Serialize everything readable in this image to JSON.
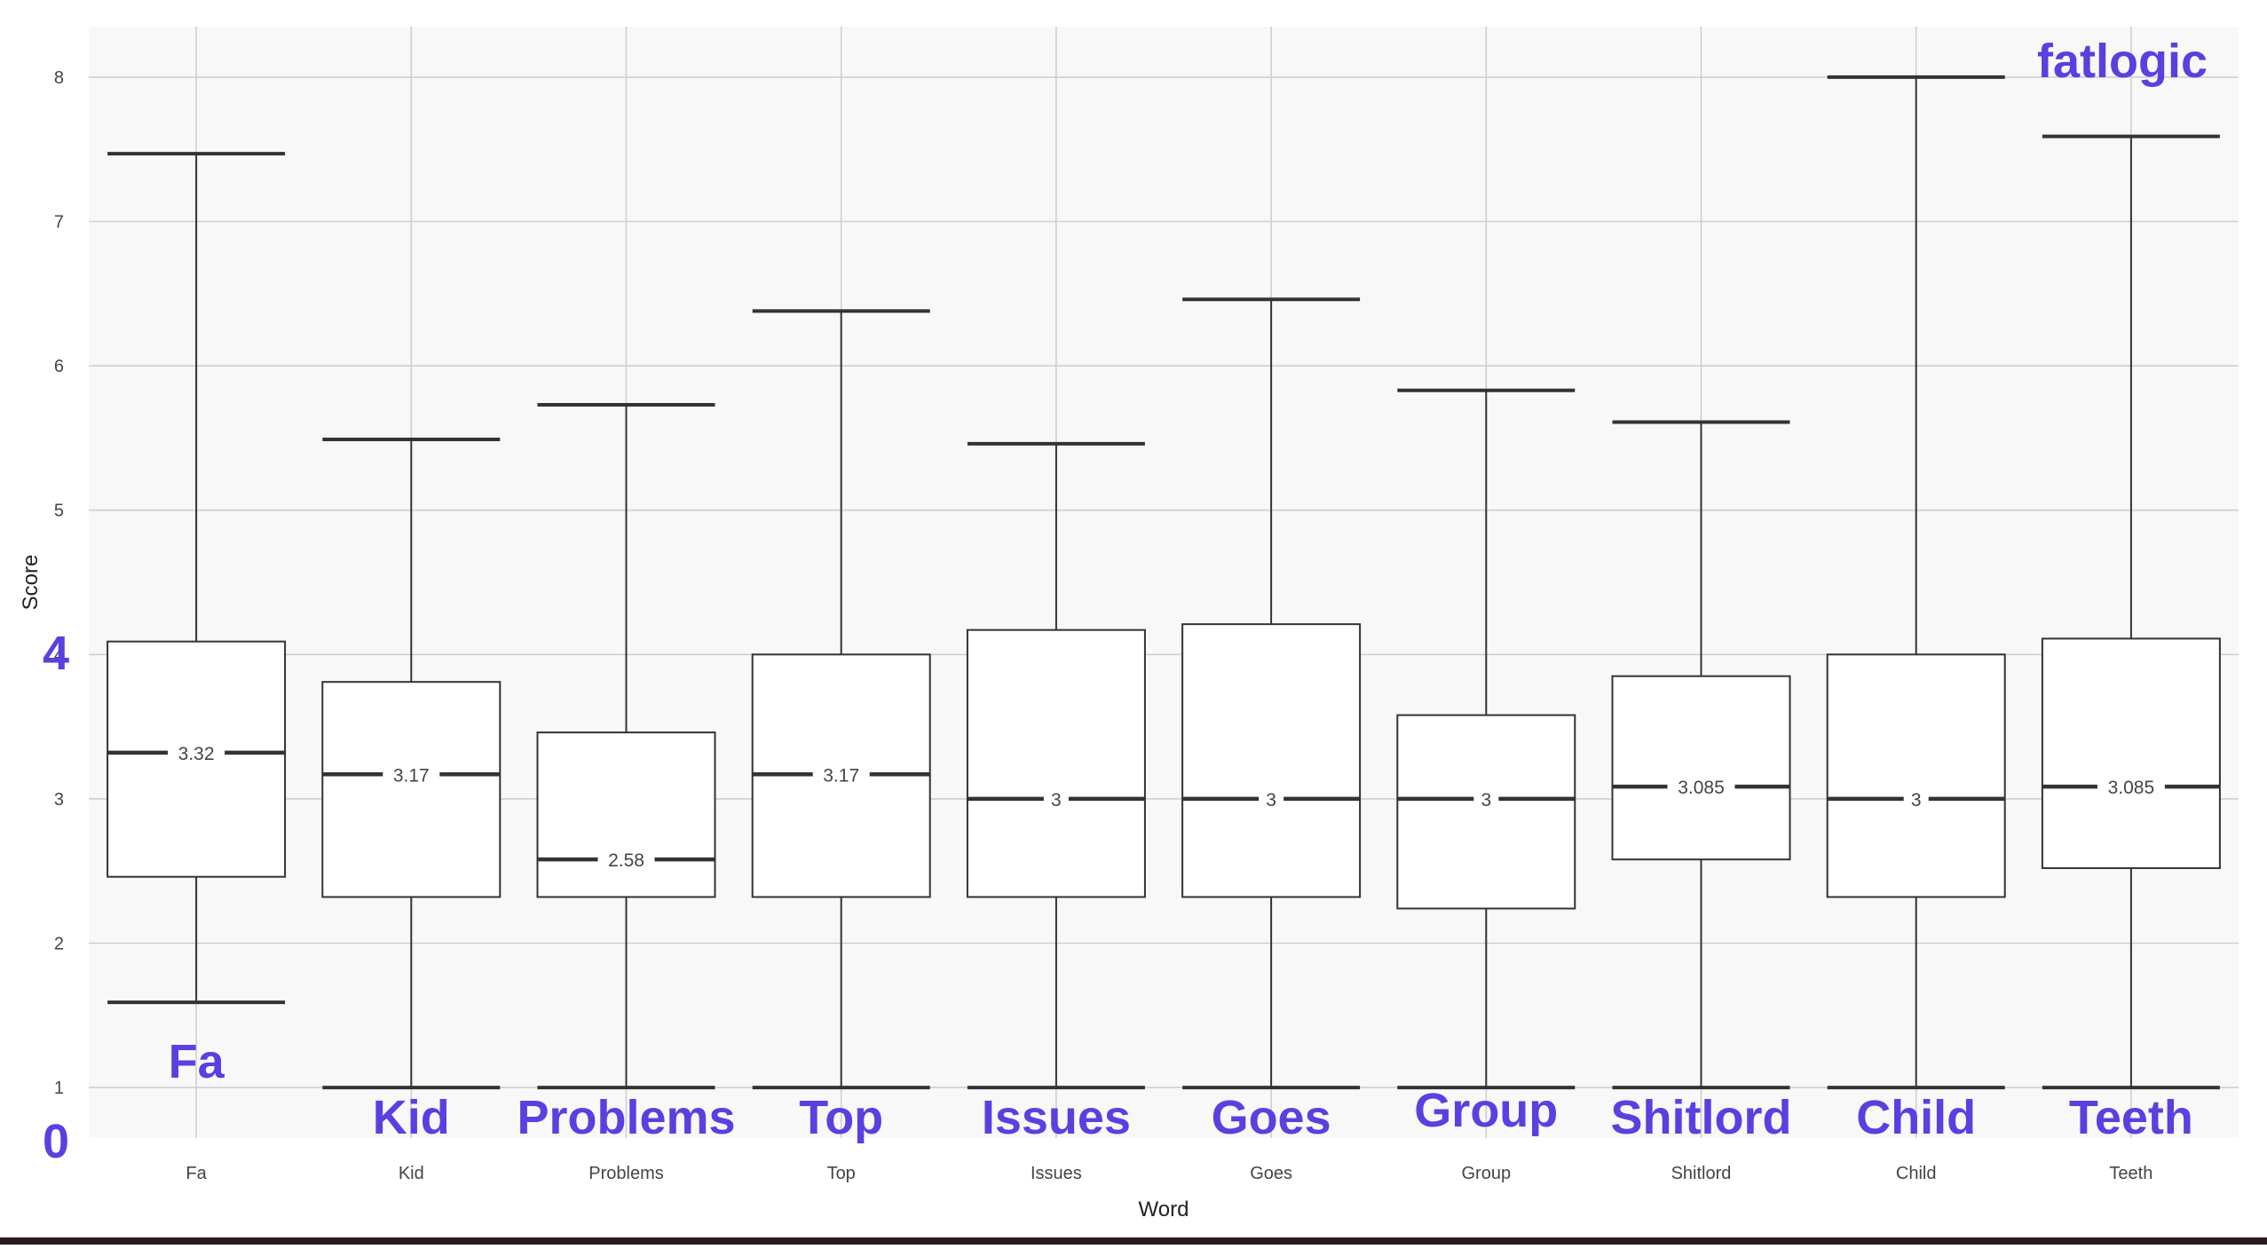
{
  "chart_data": {
    "type": "boxplot",
    "title": "",
    "xlabel": "Word",
    "ylabel": "Score",
    "ylim": [
      0.65,
      8.35
    ],
    "y_ticks": [
      "1",
      "2",
      "3",
      "4",
      "5",
      "6",
      "7",
      "8"
    ],
    "grid": true,
    "categories": [
      "Fa",
      "Kid",
      "Problems",
      "Top",
      "Issues",
      "Goes",
      "Group",
      "Shitlord",
      "Child",
      "Teeth"
    ],
    "boxes": [
      {
        "category": "Fa",
        "whisker_low": 1.59,
        "q1": 2.46,
        "median": 3.32,
        "q3": 4.09,
        "whisker_high": 7.47,
        "median_label": "3.32"
      },
      {
        "category": "Kid",
        "whisker_low": 1.0,
        "q1": 2.32,
        "median": 3.17,
        "q3": 3.81,
        "whisker_high": 5.49,
        "median_label": "3.17"
      },
      {
        "category": "Problems",
        "whisker_low": 1.0,
        "q1": 2.32,
        "median": 2.58,
        "q3": 3.46,
        "whisker_high": 5.73,
        "median_label": "2.58"
      },
      {
        "category": "Top",
        "whisker_low": 1.0,
        "q1": 2.32,
        "median": 3.17,
        "q3": 4.0,
        "whisker_high": 6.38,
        "median_label": "3.17"
      },
      {
        "category": "Issues",
        "whisker_low": 1.0,
        "q1": 2.32,
        "median": 3.0,
        "q3": 4.17,
        "whisker_high": 5.46,
        "median_label": "3"
      },
      {
        "category": "Goes",
        "whisker_low": 1.0,
        "q1": 2.32,
        "median": 3.0,
        "q3": 4.21,
        "whisker_high": 6.46,
        "median_label": "3"
      },
      {
        "category": "Group",
        "whisker_low": 1.0,
        "q1": 2.24,
        "median": 3.0,
        "q3": 3.58,
        "whisker_high": 5.83,
        "median_label": "3"
      },
      {
        "category": "Shitlord",
        "whisker_low": 1.0,
        "q1": 2.58,
        "median": 3.085,
        "q3": 3.85,
        "whisker_high": 5.61,
        "median_label": "3.085"
      },
      {
        "category": "Child",
        "whisker_low": 1.0,
        "q1": 2.32,
        "median": 3.0,
        "q3": 4.0,
        "whisker_high": 8.0,
        "median_label": "3"
      },
      {
        "category": "Teeth",
        "whisker_low": 1.0,
        "q1": 2.52,
        "median": 3.085,
        "q3": 4.11,
        "whisker_high": 7.59,
        "median_label": "3.085"
      }
    ],
    "colors": {
      "panel": "#f8f8f8",
      "grid": "#cfcfcf",
      "box_fill": "#ffffff",
      "stroke": "#333333",
      "annotation": "#5b3fe0"
    }
  },
  "annotations": {
    "corner_label": "fatlogic",
    "axis_marks": [
      {
        "text": "4",
        "value": 4
      },
      {
        "text": "0",
        "value": 0
      }
    ],
    "word_labels": [
      "Fa",
      "Kid",
      "Problems",
      "Top",
      "Issues",
      "Goes",
      "Group",
      "Shitlord",
      "Child",
      "Teeth"
    ]
  }
}
